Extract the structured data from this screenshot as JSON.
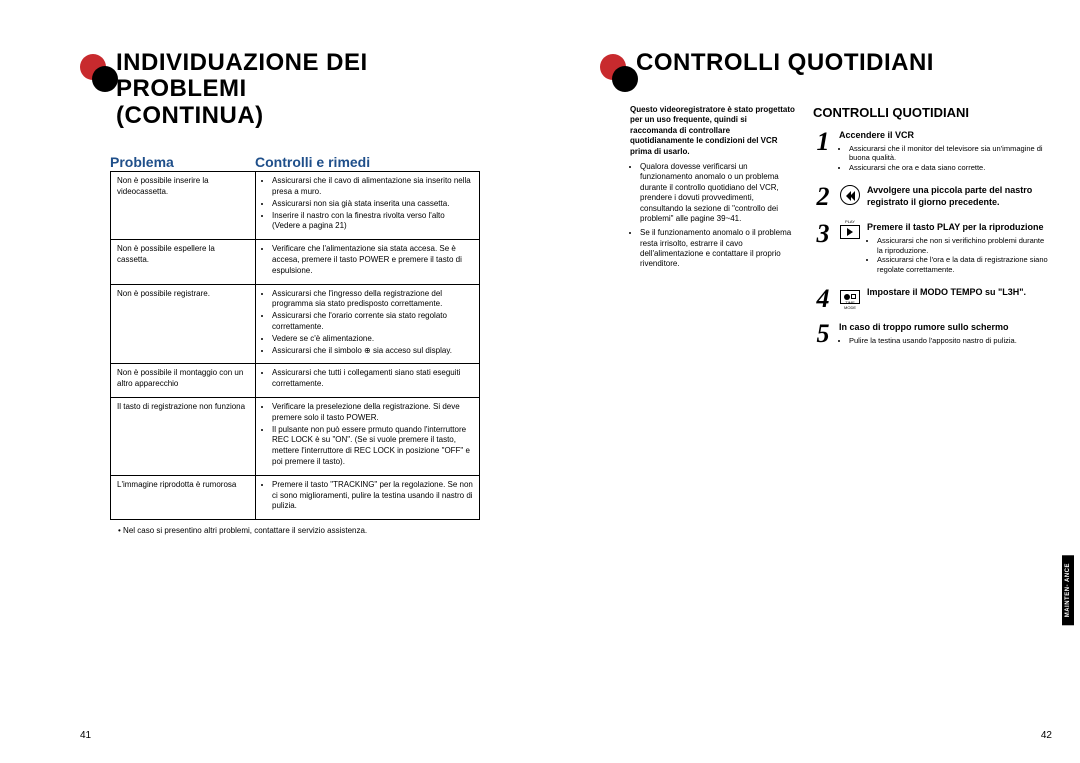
{
  "colors": {
    "accent_red": "#c82a2e",
    "header_blue": "#1f4f8a",
    "black": "#000000",
    "white": "#ffffff"
  },
  "left_page": {
    "title_line1": "INDIVIDUAZIONE DEI PROBLEMI",
    "title_line2": "(CONTINUA)",
    "header_problem": "Problema",
    "header_remedy": "Controlli e rimedi",
    "rows": [
      {
        "problem": "Non è possibile inserire la videocassetta.",
        "remedies": [
          "Assicurarsi che il cavo di alimentazione sia inserito nella presa a muro.",
          "Assicurarsi non sia già stata inserita una cassetta.",
          "Inserire il nastro con la finestra rivolta verso l'alto (Vedere a pagina 21)"
        ]
      },
      {
        "problem": "Non è possibile espellere la cassetta.",
        "remedies": [
          "Verificare che l'alimentazione sia stata accesa. Se è accesa, premere il tasto POWER e premere il tasto di espulsione."
        ]
      },
      {
        "problem": "Non è possibile registrare.",
        "remedies": [
          "Assicurarsi che l'ingresso della registrazione del programma sia stato predisposto correttamente.",
          "Assicurarsi che l'orario corrente sia stato regolato correttamente.",
          "Vedere se c'è alimentazione.",
          "Assicurarsi che il simbolo ⊕ sia acceso sul display."
        ]
      },
      {
        "problem": "Non è possibile il montaggio con un altro apparecchio",
        "remedies": [
          "Assicurarsi che tutti i collegamenti siano stati eseguiti correttamente."
        ]
      },
      {
        "problem": "Il tasto di registrazione non funziona",
        "remedies": [
          "Verificare la preselezione della registrazione. Si deve premere solo il tasto POWER.",
          "Il pulsante non può essere prmuto quando l'interruttore REC LOCK è su \"ON\". (Se si vuole premere il tasto, mettere l'interruttore di REC LOCK in posizione \"OFF\" e poi premere il tasto)."
        ]
      },
      {
        "problem": "L'immagine riprodotta è rumorosa",
        "remedies": [
          "Premere il tasto \"TRACKING\" per la regolazione. Se non ci sono miglioramenti, pulire la testina usando il nastro di pulizia."
        ]
      }
    ],
    "footnote_bullet": "•",
    "footnote": "Nel caso si presentino altri problemi, contattare il servizio assistenza.",
    "page_number": "41"
  },
  "right_page": {
    "title": "CONTROLLI QUOTIDIANI",
    "intro_bold": "Questo videoregistratore è stato progettato per un uso frequente, quindi si raccomanda di controllare quotidianamente le condizioni del VCR prima di usarlo.",
    "intro_bullets": [
      "Qualora dovesse verificarsi un funzionamento anomalo o un problema durante il controllo quotidiano del VCR, prendere i dovuti provvedimenti, consultando la sezione di \"controllo dei problemi\" alle pagine 39~41.",
      "Se il funzionamento anomalo o il problema resta irrisolto, estrarre il cavo dell'alimentazione e contattare il proprio rivenditore."
    ],
    "section_title": "CONTROLLI QUOTIDIANI",
    "steps": [
      {
        "num": "1",
        "icon": null,
        "head": "Accendere il VCR",
        "bullets": [
          "Assicurarsi che il monitor del televisore sia un'immagine di buona qualità.",
          "Assicurarsi che ora e data siano corrette."
        ]
      },
      {
        "num": "2",
        "icon": "rewind",
        "head": "Avvolgere una piccola parte del nastro registrato il giorno precedente.",
        "bullets": []
      },
      {
        "num": "3",
        "icon": "play",
        "icon_label": "PLAY",
        "head": "Premere il tasto PLAY per la riproduzione",
        "bullets": [
          "Assicurarsi che non si verifichino problemi durante la riproduzione.",
          "Assicurarsi che l'ora e la data di registrazione siano regolate correttamente."
        ]
      },
      {
        "num": "4",
        "icon": "timemode",
        "icon_label_below": "TIME MODE",
        "head": "Impostare il MODO TEMPO su \"L3H\".",
        "bullets": []
      },
      {
        "num": "5",
        "icon": null,
        "head": "In caso di troppo rumore sullo schermo",
        "bullets": [
          "Pulire la testina usando l'apposito nastro di pulizia."
        ]
      }
    ],
    "side_tab": "MAINTEN-\nANCE",
    "page_number": "42"
  }
}
